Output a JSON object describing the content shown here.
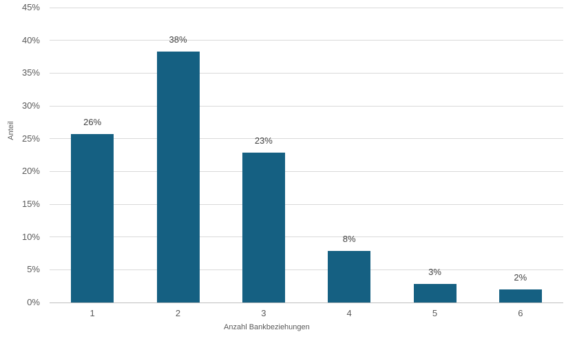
{
  "chart_data": {
    "type": "bar",
    "title": "",
    "xlabel": "Anzahl Bankbeziehungen",
    "ylabel": "Anteil",
    "categories": [
      "1",
      "2",
      "3",
      "4",
      "5",
      "6"
    ],
    "values": [
      25.7,
      38.3,
      22.9,
      7.9,
      2.8,
      2.0
    ],
    "bar_labels": [
      "26%",
      "38%",
      "23%",
      "8%",
      "3%",
      "2%"
    ],
    "ylim": [
      0,
      45
    ],
    "ytick_step": 5,
    "ytick_labels": [
      "0%",
      "5%",
      "10%",
      "15%",
      "20%",
      "25%",
      "30%",
      "35%",
      "40%",
      "45%"
    ],
    "grid": true,
    "legend": "none",
    "colors": {
      "bar": "#156082",
      "gridline": "#D9D9D9",
      "axis_line": "#BFBFBF",
      "tick_label": "#595959",
      "axis_title": "#595959",
      "data_label": "#404040",
      "background": "#FFFFFF"
    }
  }
}
